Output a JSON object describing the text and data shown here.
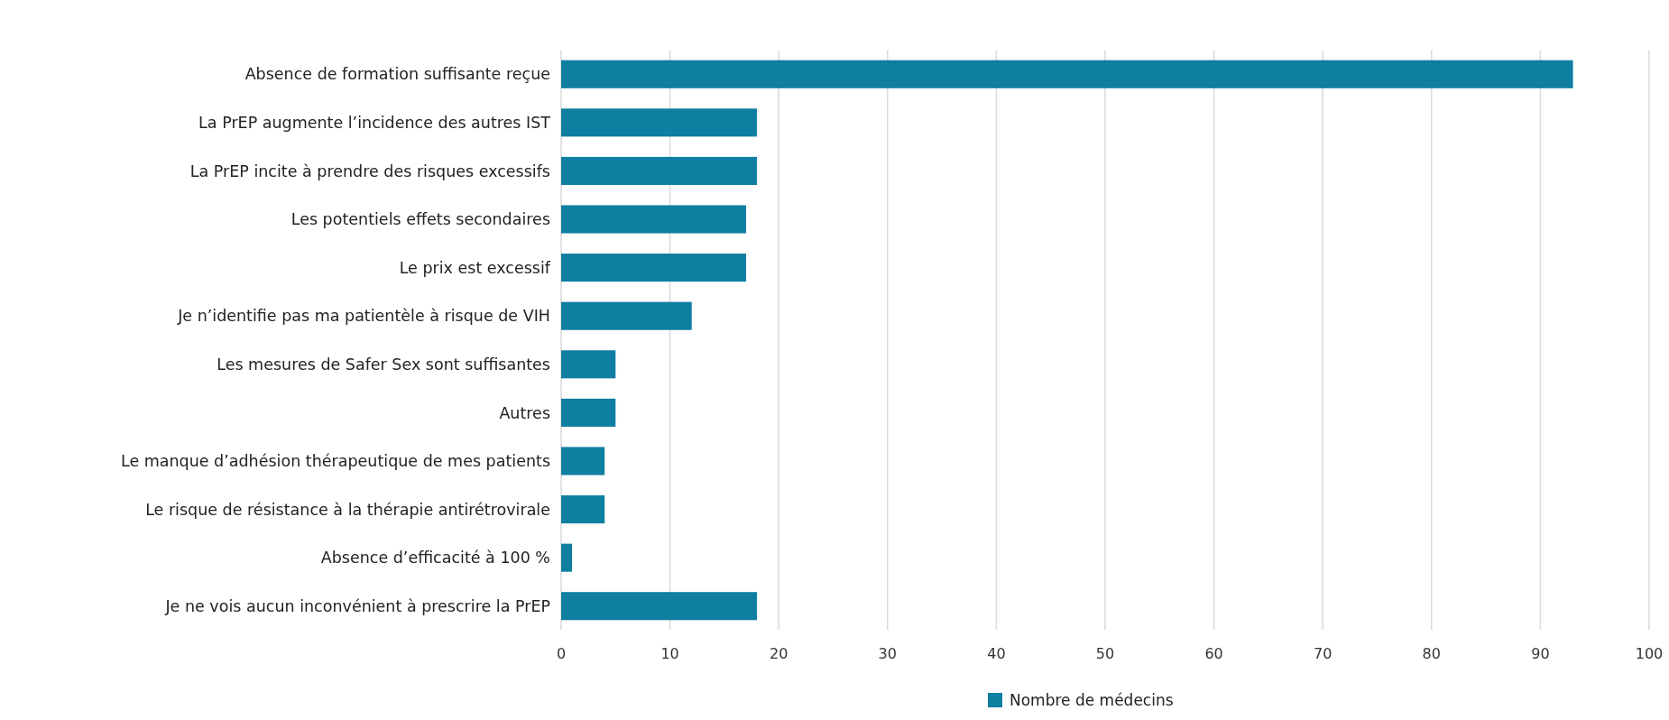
{
  "chart_data": {
    "type": "bar",
    "orientation": "horizontal",
    "categories": [
      "Absence de formation suffisante reçue",
      "La PrEP augmente l’incidence des autres IST",
      "La PrEP incite à prendre des risques excessifs",
      "Les potentiels effets secondaires",
      "Le prix est excessif",
      "Je n’identifie pas ma patientèle à risque de VIH",
      "Les mesures de Safer Sex sont suffisantes",
      "Autres",
      "Le manque d’adhésion thérapeutique de mes patients",
      "Le risque de résistance à la thérapie antirétrovirale",
      "Absence d’efficacité à 100 %",
      "Je ne vois aucun inconvénient à prescrire la PrEP"
    ],
    "series": [
      {
        "name": "Nombre de médecins",
        "color": "#0e7ea1",
        "values": [
          93,
          18,
          18,
          17,
          17,
          12,
          5,
          5,
          4,
          4,
          1,
          18
        ]
      }
    ],
    "xlim": [
      0,
      100
    ],
    "xticks": [
      0,
      10,
      20,
      30,
      40,
      50,
      60,
      70,
      80,
      90,
      100
    ],
    "grid": "x",
    "legend": "bottom"
  }
}
